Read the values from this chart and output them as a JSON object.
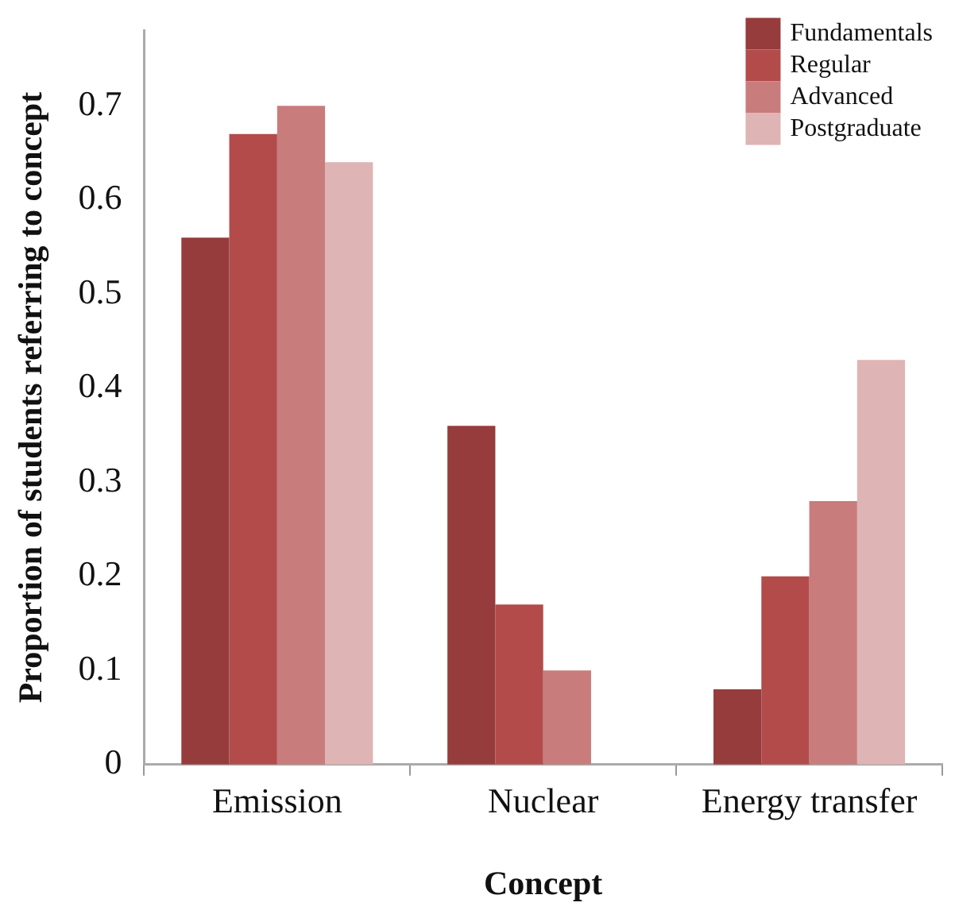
{
  "chart_data": {
    "type": "bar",
    "xlabel": "Concept",
    "ylabel": "Proportion of students referring to concept",
    "categories": [
      "Emission",
      "Nuclear",
      "Energy transfer"
    ],
    "series": [
      {
        "name": "Fundamentals",
        "color": "#963c3c",
        "values": [
          0.56,
          0.36,
          0.08
        ]
      },
      {
        "name": "Regular",
        "color": "#b34b4b",
        "values": [
          0.67,
          0.17,
          0.2
        ]
      },
      {
        "name": "Advanced",
        "color": "#c97c7c",
        "values": [
          0.7,
          0.1,
          0.28
        ]
      },
      {
        "name": "Postgraduate",
        "color": "#dfb4b4",
        "values": [
          0.64,
          0,
          0.43
        ]
      }
    ],
    "ylim": [
      0,
      0.78
    ],
    "yticks": [
      0,
      0.1,
      0.2,
      0.3,
      0.4,
      0.5,
      0.6,
      0.7
    ],
    "grid": false,
    "legend": "top right"
  }
}
